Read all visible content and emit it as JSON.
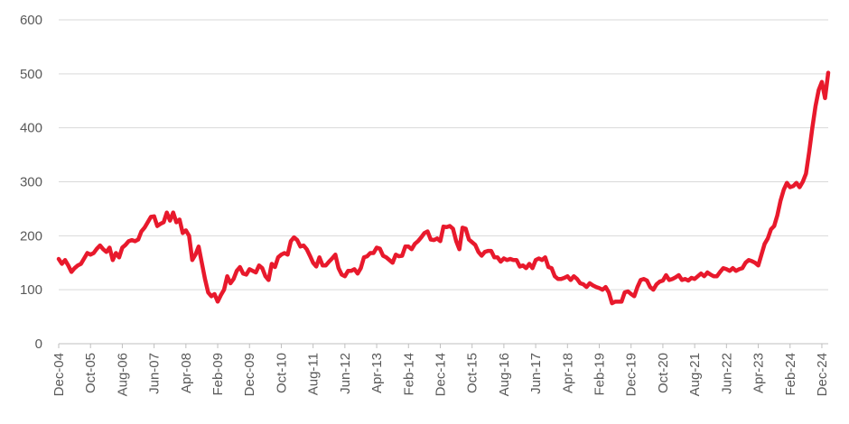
{
  "chart_data": {
    "type": "line",
    "title": "",
    "xlabel": "",
    "ylabel": "",
    "ylim": [
      0,
      600
    ],
    "yticks": [
      0,
      100,
      200,
      300,
      400,
      500,
      600
    ],
    "grid": true,
    "legend": "none",
    "line_color": "#e8192c",
    "x_tick_labels": [
      "Dec-04",
      "Oct-05",
      "Aug-06",
      "Jun-07",
      "Apr-08",
      "Feb-09",
      "Dec-09",
      "Oct-10",
      "Aug-11",
      "Jun-12",
      "Apr-13",
      "Feb-14",
      "Dec-14",
      "Oct-15",
      "Aug-16",
      "Jun-17",
      "Apr-18",
      "Feb-19",
      "Dec-19",
      "Oct-20",
      "Aug-21",
      "Jun-22",
      "Apr-23",
      "Feb-24",
      "Dec-24"
    ],
    "series": [
      {
        "name": "",
        "points": [
          [
            "2004-12",
            157
          ],
          [
            "2005-01",
            148
          ],
          [
            "2005-02",
            155
          ],
          [
            "2005-03",
            145
          ],
          [
            "2005-04",
            133
          ],
          [
            "2005-05",
            140
          ],
          [
            "2005-06",
            145
          ],
          [
            "2005-07",
            148
          ],
          [
            "2005-08",
            158
          ],
          [
            "2005-09",
            168
          ],
          [
            "2005-10",
            165
          ],
          [
            "2005-11",
            168
          ],
          [
            "2005-12",
            176
          ],
          [
            "2006-01",
            182
          ],
          [
            "2006-02",
            175
          ],
          [
            "2006-03",
            170
          ],
          [
            "2006-04",
            178
          ],
          [
            "2006-05",
            155
          ],
          [
            "2006-06",
            168
          ],
          [
            "2006-07",
            160
          ],
          [
            "2006-08",
            178
          ],
          [
            "2006-09",
            183
          ],
          [
            "2006-10",
            190
          ],
          [
            "2006-11",
            192
          ],
          [
            "2006-12",
            190
          ],
          [
            "2007-01",
            193
          ],
          [
            "2007-02",
            208
          ],
          [
            "2007-03",
            215
          ],
          [
            "2007-04",
            225
          ],
          [
            "2007-05",
            235
          ],
          [
            "2007-06",
            236
          ],
          [
            "2007-07",
            218
          ],
          [
            "2007-08",
            222
          ],
          [
            "2007-09",
            225
          ],
          [
            "2007-10",
            243
          ],
          [
            "2007-11",
            228
          ],
          [
            "2007-12",
            243
          ],
          [
            "2008-01",
            225
          ],
          [
            "2008-02",
            230
          ],
          [
            "2008-03",
            205
          ],
          [
            "2008-04",
            210
          ],
          [
            "2008-05",
            200
          ],
          [
            "2008-06",
            155
          ],
          [
            "2008-07",
            165
          ],
          [
            "2008-08",
            180
          ],
          [
            "2008-09",
            150
          ],
          [
            "2008-10",
            120
          ],
          [
            "2008-11",
            95
          ],
          [
            "2008-12",
            88
          ],
          [
            "2009-01",
            92
          ],
          [
            "2009-02",
            78
          ],
          [
            "2009-03",
            90
          ],
          [
            "2009-04",
            100
          ],
          [
            "2009-05",
            125
          ],
          [
            "2009-06",
            112
          ],
          [
            "2009-07",
            120
          ],
          [
            "2009-08",
            135
          ],
          [
            "2009-09",
            142
          ],
          [
            "2009-10",
            130
          ],
          [
            "2009-11",
            128
          ],
          [
            "2009-12",
            138
          ],
          [
            "2010-01",
            135
          ],
          [
            "2010-02",
            132
          ],
          [
            "2010-03",
            145
          ],
          [
            "2010-04",
            140
          ],
          [
            "2010-05",
            125
          ],
          [
            "2010-06",
            118
          ],
          [
            "2010-07",
            148
          ],
          [
            "2010-08",
            142
          ],
          [
            "2010-09",
            160
          ],
          [
            "2010-10",
            165
          ],
          [
            "2010-11",
            168
          ],
          [
            "2010-12",
            165
          ],
          [
            "2011-01",
            190
          ],
          [
            "2011-02",
            197
          ],
          [
            "2011-03",
            192
          ],
          [
            "2011-04",
            180
          ],
          [
            "2011-05",
            182
          ],
          [
            "2011-06",
            175
          ],
          [
            "2011-07",
            163
          ],
          [
            "2011-08",
            150
          ],
          [
            "2011-09",
            143
          ],
          [
            "2011-10",
            160
          ],
          [
            "2011-11",
            145
          ],
          [
            "2011-12",
            145
          ],
          [
            "2012-01",
            152
          ],
          [
            "2012-02",
            158
          ],
          [
            "2012-03",
            165
          ],
          [
            "2012-04",
            140
          ],
          [
            "2012-05",
            128
          ],
          [
            "2012-06",
            125
          ],
          [
            "2012-07",
            135
          ],
          [
            "2012-08",
            135
          ],
          [
            "2012-09",
            138
          ],
          [
            "2012-10",
            130
          ],
          [
            "2012-11",
            140
          ],
          [
            "2012-12",
            160
          ],
          [
            "2013-01",
            162
          ],
          [
            "2013-02",
            168
          ],
          [
            "2013-03",
            168
          ],
          [
            "2013-04",
            178
          ],
          [
            "2013-05",
            176
          ],
          [
            "2013-06",
            163
          ],
          [
            "2013-07",
            160
          ],
          [
            "2013-08",
            155
          ],
          [
            "2013-09",
            150
          ],
          [
            "2013-10",
            165
          ],
          [
            "2013-11",
            162
          ],
          [
            "2013-12",
            163
          ],
          [
            "2014-01",
            180
          ],
          [
            "2014-02",
            180
          ],
          [
            "2014-03",
            175
          ],
          [
            "2014-04",
            185
          ],
          [
            "2014-05",
            190
          ],
          [
            "2014-06",
            197
          ],
          [
            "2014-07",
            205
          ],
          [
            "2014-08",
            208
          ],
          [
            "2014-09",
            193
          ],
          [
            "2014-10",
            192
          ],
          [
            "2014-11",
            195
          ],
          [
            "2014-12",
            190
          ],
          [
            "2015-01",
            217
          ],
          [
            "2015-02",
            216
          ],
          [
            "2015-03",
            218
          ],
          [
            "2015-04",
            213
          ],
          [
            "2015-05",
            190
          ],
          [
            "2015-06",
            175
          ],
          [
            "2015-07",
            215
          ],
          [
            "2015-08",
            213
          ],
          [
            "2015-09",
            193
          ],
          [
            "2015-10",
            188
          ],
          [
            "2015-11",
            183
          ],
          [
            "2015-12",
            170
          ],
          [
            "2016-01",
            163
          ],
          [
            "2016-02",
            170
          ],
          [
            "2016-03",
            172
          ],
          [
            "2016-04",
            172
          ],
          [
            "2016-05",
            160
          ],
          [
            "2016-06",
            160
          ],
          [
            "2016-07",
            152
          ],
          [
            "2016-08",
            158
          ],
          [
            "2016-09",
            155
          ],
          [
            "2016-10",
            157
          ],
          [
            "2016-11",
            155
          ],
          [
            "2016-12",
            155
          ],
          [
            "2017-01",
            143
          ],
          [
            "2017-02",
            145
          ],
          [
            "2017-03",
            140
          ],
          [
            "2017-04",
            148
          ],
          [
            "2017-05",
            140
          ],
          [
            "2017-06",
            155
          ],
          [
            "2017-07",
            158
          ],
          [
            "2017-08",
            155
          ],
          [
            "2017-09",
            160
          ],
          [
            "2017-10",
            142
          ],
          [
            "2017-11",
            140
          ],
          [
            "2017-12",
            125
          ],
          [
            "2018-01",
            120
          ],
          [
            "2018-02",
            120
          ],
          [
            "2018-03",
            122
          ],
          [
            "2018-04",
            125
          ],
          [
            "2018-05",
            118
          ],
          [
            "2018-06",
            125
          ],
          [
            "2018-07",
            120
          ],
          [
            "2018-08",
            112
          ],
          [
            "2018-09",
            110
          ],
          [
            "2018-10",
            105
          ],
          [
            "2018-11",
            112
          ],
          [
            "2018-12",
            108
          ],
          [
            "2019-01",
            105
          ],
          [
            "2019-02",
            103
          ],
          [
            "2019-03",
            100
          ],
          [
            "2019-04",
            105
          ],
          [
            "2019-05",
            95
          ],
          [
            "2019-06",
            75
          ],
          [
            "2019-07",
            78
          ],
          [
            "2019-08",
            78
          ],
          [
            "2019-09",
            78
          ],
          [
            "2019-10",
            95
          ],
          [
            "2019-11",
            97
          ],
          [
            "2019-12",
            92
          ],
          [
            "2020-01",
            88
          ],
          [
            "2020-02",
            105
          ],
          [
            "2020-03",
            118
          ],
          [
            "2020-04",
            120
          ],
          [
            "2020-05",
            117
          ],
          [
            "2020-06",
            105
          ],
          [
            "2020-07",
            100
          ],
          [
            "2020-08",
            110
          ],
          [
            "2020-09",
            115
          ],
          [
            "2020-10",
            117
          ],
          [
            "2020-11",
            127
          ],
          [
            "2020-12",
            118
          ],
          [
            "2021-01",
            120
          ],
          [
            "2021-02",
            123
          ],
          [
            "2021-03",
            127
          ],
          [
            "2021-04",
            118
          ],
          [
            "2021-05",
            120
          ],
          [
            "2021-06",
            117
          ],
          [
            "2021-07",
            122
          ],
          [
            "2021-08",
            120
          ],
          [
            "2021-09",
            125
          ],
          [
            "2021-10",
            130
          ],
          [
            "2021-11",
            125
          ],
          [
            "2021-12",
            132
          ],
          [
            "2022-01",
            128
          ],
          [
            "2022-02",
            125
          ],
          [
            "2022-03",
            125
          ],
          [
            "2022-04",
            133
          ],
          [
            "2022-05",
            140
          ],
          [
            "2022-06",
            138
          ],
          [
            "2022-07",
            135
          ],
          [
            "2022-08",
            140
          ],
          [
            "2022-09",
            135
          ],
          [
            "2022-10",
            138
          ],
          [
            "2022-11",
            140
          ],
          [
            "2022-12",
            150
          ],
          [
            "2023-01",
            155
          ],
          [
            "2023-02",
            153
          ],
          [
            "2023-03",
            150
          ],
          [
            "2023-04",
            145
          ],
          [
            "2023-05",
            165
          ],
          [
            "2023-06",
            185
          ],
          [
            "2023-07",
            195
          ],
          [
            "2023-08",
            212
          ],
          [
            "2023-09",
            218
          ],
          [
            "2023-10",
            238
          ],
          [
            "2023-11",
            265
          ],
          [
            "2023-12",
            285
          ],
          [
            "2024-01",
            298
          ],
          [
            "2024-02",
            290
          ],
          [
            "2024-03",
            292
          ],
          [
            "2024-04",
            298
          ],
          [
            "2024-05",
            290
          ],
          [
            "2024-06",
            300
          ],
          [
            "2024-07",
            315
          ],
          [
            "2024-08",
            355
          ],
          [
            "2024-09",
            400
          ],
          [
            "2024-10",
            440
          ],
          [
            "2024-11",
            470
          ],
          [
            "2024-12",
            485
          ],
          [
            "2025-01",
            455
          ],
          [
            "2025-02",
            502
          ]
        ]
      }
    ]
  }
}
